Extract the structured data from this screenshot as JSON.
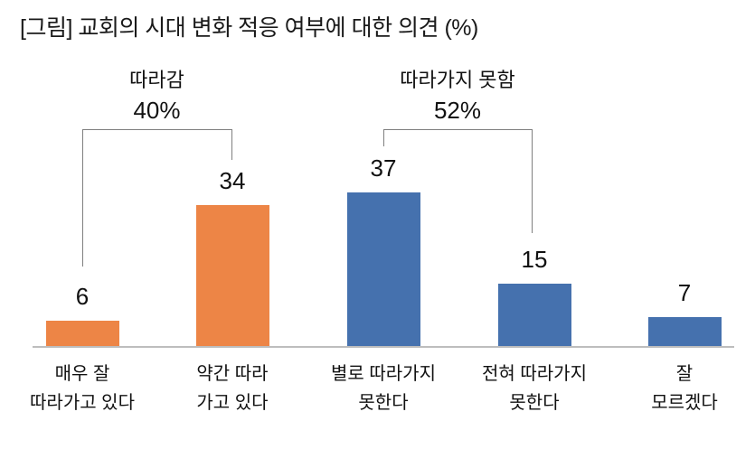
{
  "title": "[그림] 교회의 시대 변화 적응 여부에 대한 의견 (%)",
  "chart_data": {
    "type": "bar",
    "title": "[그림] 교회의 시대 변화 적응 여부에 대한 의견 (%)",
    "unit": "%",
    "categories": [
      [
        "매우 잘",
        "따라가고 있다"
      ],
      [
        "약간 따라",
        "가고 있다"
      ],
      [
        "별로 따라가지",
        "못한다"
      ],
      [
        "전혀 따라가지",
        "못한다"
      ],
      [
        "잘",
        "모르겠다"
      ]
    ],
    "values": [
      6,
      34,
      37,
      15,
      7
    ],
    "series_colors": [
      "#ED8546",
      "#ED8546",
      "#4571AE",
      "#4571AE",
      "#4571AE"
    ],
    "value_labels_shown": true,
    "grid": false,
    "ylim": [
      0,
      40
    ],
    "annotations": [
      {
        "label": "따라감",
        "value_text": "40%",
        "span": [
          0,
          1
        ]
      },
      {
        "label": "따라가지 못함",
        "value_text": "52%",
        "span": [
          2,
          3
        ]
      }
    ],
    "colors": {
      "orange": "#ED8546",
      "blue": "#4571AE",
      "axis_line": "#BDBDBD",
      "bracket_line": "#7F7F7F",
      "text": "#111111",
      "title_text": "#1A1A1A",
      "background": "#FFFFFF"
    }
  }
}
